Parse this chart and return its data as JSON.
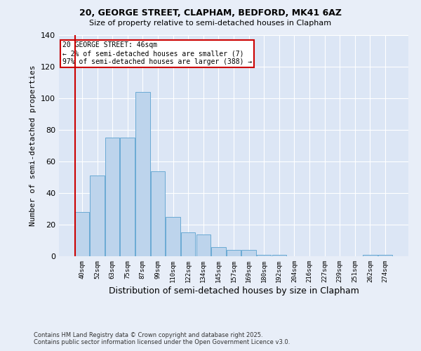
{
  "title1": "20, GEORGE STREET, CLAPHAM, BEDFORD, MK41 6AZ",
  "title2": "Size of property relative to semi-detached houses in Clapham",
  "xlabel": "Distribution of semi-detached houses by size in Clapham",
  "ylabel": "Number of semi-detached properties",
  "annotation_title": "20 GEORGE STREET: 46sqm",
  "annotation_line1": "← 2% of semi-detached houses are smaller (7)",
  "annotation_line2": "97% of semi-detached houses are larger (388) →",
  "footnote1": "Contains HM Land Registry data © Crown copyright and database right 2025.",
  "footnote2": "Contains public sector information licensed under the Open Government Licence v3.0.",
  "bar_labels": [
    "40sqm",
    "52sqm",
    "63sqm",
    "75sqm",
    "87sqm",
    "99sqm",
    "110sqm",
    "122sqm",
    "134sqm",
    "145sqm",
    "157sqm",
    "169sqm",
    "180sqm",
    "192sqm",
    "204sqm",
    "216sqm",
    "227sqm",
    "239sqm",
    "251sqm",
    "262sqm",
    "274sqm"
  ],
  "bar_values": [
    28,
    51,
    75,
    75,
    104,
    54,
    25,
    15,
    14,
    6,
    4,
    4,
    1,
    1,
    0,
    0,
    0,
    0,
    0,
    1,
    1
  ],
  "bar_color": "#bdd4ec",
  "bar_edgecolor": "#6aaad4",
  "subject_bar_index": 0,
  "subject_line_color": "#cc0000",
  "background_color": "#e8eef8",
  "plot_bg_color": "#dce6f5",
  "ylim": [
    0,
    140
  ],
  "yticks": [
    0,
    20,
    40,
    60,
    80,
    100,
    120,
    140
  ],
  "annotation_box_color": "#ffffff",
  "annotation_box_edgecolor": "#cc0000"
}
